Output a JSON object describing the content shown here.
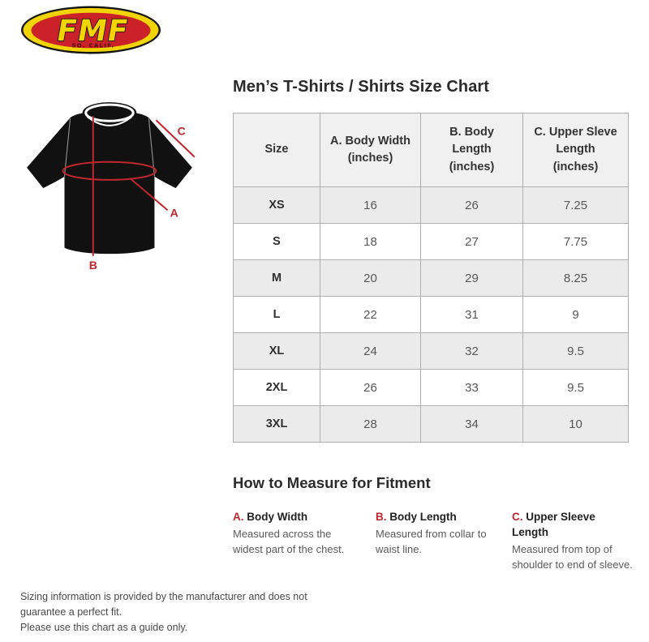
{
  "page": {
    "title": "Men’s T-Shirts / Shirts Size Chart",
    "background_color": "#ffffff",
    "accent_red": "#c0272d",
    "table_border_color": "#aeaeae",
    "table_header_bg": "#f0f0f0",
    "table_stripe_bg": "#ebebeb"
  },
  "logo": {
    "brand": "FMF",
    "subtitle": "SO. CALIF.",
    "yellow": "#f3d403",
    "red": "#cb2128"
  },
  "diagram": {
    "label_a": "A",
    "label_b": "B",
    "label_c": "C",
    "line_color": "#c0272d"
  },
  "size_chart": {
    "columns": [
      "Size",
      "A. Body Width\n(inches)",
      "B. Body\nLength\n(inches)",
      "C. Upper Sleve\nLength\n(inches)"
    ],
    "rows": [
      {
        "size": "XS",
        "body_width": "16",
        "body_length": "26",
        "sleeve_length": "7.25"
      },
      {
        "size": "S",
        "body_width": "18",
        "body_length": "27",
        "sleeve_length": "7.75"
      },
      {
        "size": "M",
        "body_width": "20",
        "body_length": "29",
        "sleeve_length": "8.25"
      },
      {
        "size": "L",
        "body_width": "22",
        "body_length": "31",
        "sleeve_length": "9"
      },
      {
        "size": "XL",
        "body_width": "24",
        "body_length": "32",
        "sleeve_length": "9.5"
      },
      {
        "size": "2XL",
        "body_width": "26",
        "body_length": "33",
        "sleeve_length": "9.5"
      },
      {
        "size": "3XL",
        "body_width": "28",
        "body_length": "34",
        "sleeve_length": "10"
      }
    ]
  },
  "measure_section": {
    "title": "How to Measure for Fitment",
    "items": [
      {
        "key": "A.",
        "label": " Body Width",
        "description": "Measured across the widest part of the chest."
      },
      {
        "key": "B.",
        "label": " Body Length",
        "description": "Measured from collar to waist line."
      },
      {
        "key": "C.",
        "label": " Upper Sleeve\nLength",
        "description": "Measured from top of shoulder to end of sleeve."
      }
    ]
  },
  "footer": {
    "line1": "Sizing information is provided by the manufacturer and does not guarantee a perfect fit.",
    "line2": "Please use this chart as a guide only."
  }
}
